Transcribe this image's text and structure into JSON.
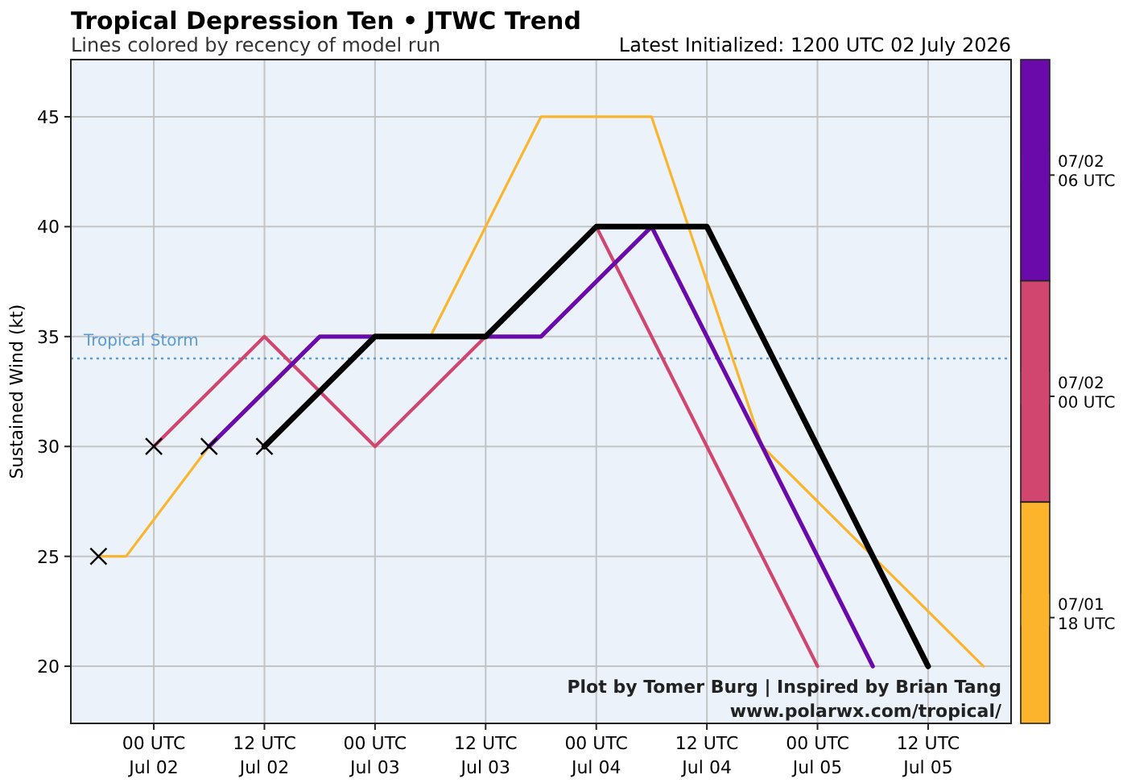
{
  "chart_data": {
    "type": "line",
    "title": "Tropical Depression Ten • JTWC Trend",
    "subtitle": "Lines colored by recency of model run",
    "ylabel": "Sustained Wind (kt)",
    "annotations": [
      "Latest Initialized: 1200 UTC 02 July 2026",
      "Plot by Tomer Burg | Inspired by Brian Tang",
      "www.polarwx.com/tropical/"
    ],
    "xlim": [
      "2026-07-01T15:00",
      "2026-07-05T21:00"
    ],
    "ylim": [
      17.4,
      47.6
    ],
    "xticks": [
      {
        "value": "2026-07-02T00:00",
        "label": "00 UTC\nJul 02"
      },
      {
        "value": "2026-07-02T12:00",
        "label": "12 UTC\nJul 02"
      },
      {
        "value": "2026-07-03T00:00",
        "label": "00 UTC\nJul 03"
      },
      {
        "value": "2026-07-03T12:00",
        "label": "12 UTC\nJul 03"
      },
      {
        "value": "2026-07-04T00:00",
        "label": "00 UTC\nJul 04"
      },
      {
        "value": "2026-07-04T12:00",
        "label": "12 UTC\nJul 04"
      },
      {
        "value": "2026-07-05T00:00",
        "label": "00 UTC\nJul 05"
      },
      {
        "value": "2026-07-05T12:00",
        "label": "12 UTC\nJul 05"
      }
    ],
    "yticks": [
      20,
      25,
      30,
      35,
      40,
      45
    ],
    "grid": true,
    "legend": "right",
    "line_style": "solid",
    "ref_lines": [
      {
        "axis": "y",
        "value": 34,
        "label": "Tropical Storm",
        "color": "#5b9bd5",
        "line_style": "dotted"
      }
    ],
    "series": [
      {
        "name": "07/01\n18 UTC",
        "color": "#fbb42c",
        "x": [
          "2026-07-01T18:00",
          "2026-07-01T21:00",
          "2026-07-02T06:00",
          "2026-07-02T18:00",
          "2026-07-03T06:00",
          "2026-07-03T18:00",
          "2026-07-04T06:00",
          "2026-07-04T18:00",
          "2026-07-05T18:00"
        ],
        "values": [
          25,
          25,
          30,
          null,
          35,
          45,
          45,
          30,
          20
        ]
      },
      {
        "name": "07/02\n00 UTC",
        "color": "#d0466f",
        "x": [
          "2026-07-02T00:00",
          "2026-07-02T12:00",
          "2026-07-03T00:00",
          "2026-07-03T12:00",
          "2026-07-04T00:00",
          "2026-07-04T12:00",
          "2026-07-05T00:00"
        ],
        "values": [
          30,
          35,
          30,
          35,
          40,
          30,
          20
        ]
      },
      {
        "name": "07/02\n06 UTC",
        "color": "#6a0aab",
        "x": [
          "2026-07-02T06:00",
          "2026-07-02T18:00",
          "2026-07-03T18:00",
          "2026-07-04T06:00",
          "2026-07-05T06:00"
        ],
        "values": [
          30,
          35,
          35,
          40,
          20
        ]
      },
      {
        "color": "#000000",
        "x": [
          "2026-07-02T12:00",
          "2026-07-03T00:00",
          "2026-07-03T12:00",
          "2026-07-04T00:00",
          "2026-07-04T12:00",
          "2026-07-05T12:00"
        ],
        "values": [
          30,
          35,
          35,
          40,
          40,
          20
        ]
      },
      {
        "type": "scatter",
        "marker": "cross",
        "color": "#000000",
        "x": [
          "2026-07-01T18:00",
          "2026-07-02T00:00",
          "2026-07-02T06:00",
          "2026-07-02T12:00"
        ],
        "values": [
          25,
          30,
          30,
          30
        ]
      }
    ]
  }
}
